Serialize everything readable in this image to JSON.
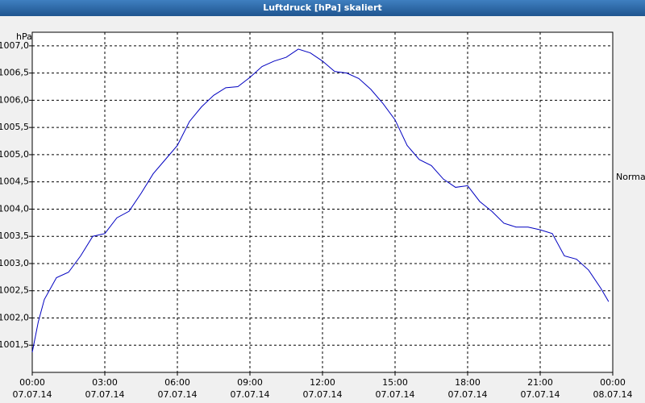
{
  "chart_data": {
    "type": "line",
    "title": "Luftdruck [hPa] skaliert",
    "y_label": "hPa",
    "annotation": "Normal",
    "x": [
      0,
      0.25,
      0.5,
      1,
      1.5,
      2,
      2.5,
      3,
      3.5,
      4,
      4.5,
      5,
      5.5,
      6,
      6.5,
      7,
      7.5,
      8,
      8.5,
      9,
      9.5,
      10,
      10.5,
      11,
      11.5,
      12,
      12.5,
      13,
      13.5,
      14,
      14.5,
      15,
      15.5,
      16,
      16.5,
      17,
      17.5,
      18,
      18.5,
      19,
      19.5,
      20,
      20.5,
      21,
      21.5,
      22,
      22.5,
      23,
      23.5,
      23.83
    ],
    "series": [
      {
        "name": "Luftdruck",
        "color": "#0000c0",
        "values": [
          1001.37,
          1001.93,
          1002.34,
          1002.74,
          1002.84,
          1003.14,
          1003.5,
          1003.55,
          1003.84,
          1003.96,
          1004.29,
          1004.65,
          1004.91,
          1005.17,
          1005.61,
          1005.88,
          1006.09,
          1006.23,
          1006.25,
          1006.42,
          1006.62,
          1006.72,
          1006.79,
          1006.94,
          1006.87,
          1006.72,
          1006.53,
          1006.5,
          1006.4,
          1006.2,
          1005.94,
          1005.64,
          1005.17,
          1004.91,
          1004.8,
          1004.55,
          1004.4,
          1004.43,
          1004.14,
          1003.96,
          1003.74,
          1003.67,
          1003.67,
          1003.62,
          1003.55,
          1003.14,
          1003.08,
          1002.88,
          1002.55,
          1002.3
        ]
      }
    ],
    "xlim": [
      0,
      24
    ],
    "xticks": [
      {
        "value": 0,
        "label": "00:00"
      },
      {
        "value": 3,
        "label": "03:00"
      },
      {
        "value": 6,
        "label": "06:00"
      },
      {
        "value": 9,
        "label": "09:00"
      },
      {
        "value": 12,
        "label": "12:00"
      },
      {
        "value": 15,
        "label": "15:00"
      },
      {
        "value": 18,
        "label": "18:00"
      },
      {
        "value": 21,
        "label": "21:00"
      },
      {
        "value": 24,
        "label": "00:00"
      }
    ],
    "xtick_dates": [
      "07.07.14",
      "07.07.14",
      "07.07.14",
      "07.07.14",
      "07.07.14",
      "07.07.14",
      "07.07.14",
      "07.07.14",
      "08.07.14"
    ],
    "ylim": [
      1001.0,
      1007.25
    ],
    "yticks": [
      {
        "value": 1001.5,
        "label": "1001,5"
      },
      {
        "value": 1002,
        "label": "1002,0"
      },
      {
        "value": 1002.5,
        "label": "1002,5"
      },
      {
        "value": 1003,
        "label": "1003,0"
      },
      {
        "value": 1003.5,
        "label": "1003,5"
      },
      {
        "value": 1004,
        "label": "1004,0"
      },
      {
        "value": 1004.5,
        "label": "1004,5"
      },
      {
        "value": 1005,
        "label": "1005,0"
      },
      {
        "value": 1005.5,
        "label": "1005,5"
      },
      {
        "value": 1006,
        "label": "1006,0"
      },
      {
        "value": 1006.5,
        "label": "1006,5"
      },
      {
        "value": 1007,
        "label": "1007,0"
      }
    ],
    "grid": true
  }
}
